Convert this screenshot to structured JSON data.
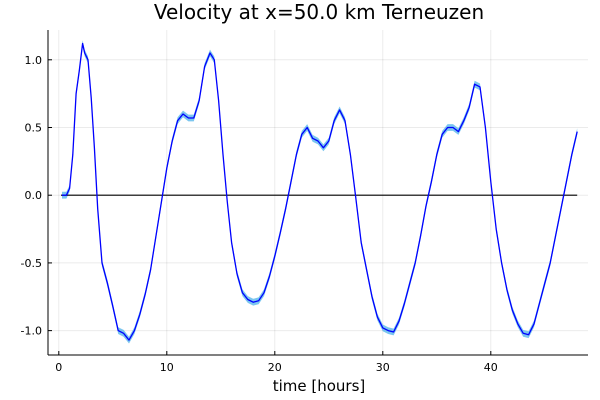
{
  "chart_data": {
    "type": "line",
    "title": "Velocity at x=50.0 km Terneuzen",
    "xlabel": "time [hours]",
    "ylabel": "",
    "xlim": [
      -1,
      49
    ],
    "ylim": [
      -1.18,
      1.22
    ],
    "x_ticks": [
      0,
      10,
      20,
      30,
      40
    ],
    "y_ticks": [
      -1.0,
      -0.5,
      0.0,
      0.5,
      1.0
    ],
    "x_tick_labels": [
      "0",
      "10",
      "20",
      "30",
      "40"
    ],
    "y_tick_labels": [
      "-1.0",
      "-0.5",
      "0.0",
      "0.5",
      "1.0"
    ],
    "grid": true,
    "legend": "none",
    "colors": {
      "mean_line": "#0000ff",
      "band": "#4fb3ea",
      "reference_line": "#000000"
    },
    "series": [
      {
        "role": "mean",
        "x": [
          0.3,
          0.7,
          1.0,
          1.3,
          1.6,
          1.9,
          2.2,
          2.4,
          2.7,
          3.0,
          3.3,
          3.6,
          4.0,
          4.5,
          5.0,
          5.5,
          6.0,
          6.5,
          7.0,
          7.5,
          8.0,
          8.5,
          9.0,
          9.5,
          10.0,
          10.5,
          11.0,
          11.5,
          12.0,
          12.5,
          13.0,
          13.5,
          14.0,
          14.4,
          14.8,
          15.2,
          15.6,
          16.0,
          16.5,
          17.0,
          17.5,
          18.0,
          18.5,
          19.0,
          19.5,
          20.0,
          20.5,
          21.0,
          21.5,
          22.0,
          22.5,
          23.0,
          23.5,
          24.0,
          24.5,
          25.0,
          25.5,
          26.0,
          26.5,
          27.0,
          27.5,
          28.0,
          28.5,
          29.0,
          29.5,
          30.0,
          30.5,
          31.0,
          31.5,
          32.0,
          32.5,
          33.0,
          33.5,
          34.0,
          34.5,
          35.0,
          35.5,
          36.0,
          36.5,
          37.0,
          37.5,
          38.0,
          38.5,
          39.0,
          39.5,
          40.0,
          40.5,
          41.0,
          41.5,
          42.0,
          42.5,
          43.0,
          43.5,
          44.0,
          44.5,
          45.0,
          45.5,
          46.0,
          46.5,
          47.0,
          47.5,
          48.0
        ],
        "y": [
          0.0,
          0.0,
          0.05,
          0.3,
          0.75,
          0.92,
          1.12,
          1.05,
          1.0,
          0.72,
          0.35,
          -0.1,
          -0.5,
          -0.65,
          -0.82,
          -1.0,
          -1.02,
          -1.07,
          -1.0,
          -0.88,
          -0.73,
          -0.55,
          -0.3,
          -0.05,
          0.2,
          0.4,
          0.55,
          0.6,
          0.57,
          0.57,
          0.7,
          0.95,
          1.05,
          1.0,
          0.7,
          0.3,
          -0.05,
          -0.35,
          -0.58,
          -0.72,
          -0.77,
          -0.79,
          -0.78,
          -0.72,
          -0.6,
          -0.45,
          -0.28,
          -0.1,
          0.1,
          0.3,
          0.45,
          0.5,
          0.42,
          0.4,
          0.35,
          0.4,
          0.55,
          0.63,
          0.55,
          0.3,
          -0.02,
          -0.35,
          -0.55,
          -0.75,
          -0.9,
          -0.98,
          -1.0,
          -1.01,
          -0.93,
          -0.8,
          -0.65,
          -0.5,
          -0.3,
          -0.08,
          0.1,
          0.3,
          0.45,
          0.5,
          0.5,
          0.47,
          0.55,
          0.65,
          0.82,
          0.8,
          0.5,
          0.1,
          -0.25,
          -0.5,
          -0.7,
          -0.85,
          -0.95,
          -1.02,
          -1.03,
          -0.95,
          -0.8,
          -0.65,
          -0.5,
          -0.3,
          -0.1,
          0.1,
          0.3,
          0.47
        ],
        "band_halfwidth": 0.025
      },
      {
        "role": "reference",
        "x": [
          0.2,
          48.0
        ],
        "y": [
          0.0,
          0.0
        ]
      }
    ]
  }
}
